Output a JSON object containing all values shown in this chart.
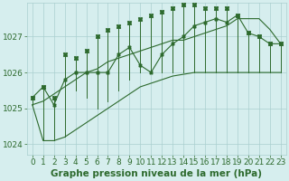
{
  "xlabel": "Graphe pression niveau de la mer (hPa)",
  "hours": [
    0,
    1,
    2,
    3,
    4,
    5,
    6,
    7,
    8,
    9,
    10,
    11,
    12,
    13,
    14,
    15,
    16,
    17,
    18,
    19,
    20,
    21,
    22,
    23
  ],
  "values_main": [
    1025.3,
    1025.6,
    1025.1,
    1025.8,
    1026.0,
    1026.0,
    1026.0,
    1026.0,
    1026.5,
    1026.7,
    1026.2,
    1026.0,
    1026.5,
    1026.8,
    1027.0,
    1027.3,
    1027.4,
    1027.5,
    1027.4,
    1027.6,
    1027.1,
    1027.0,
    1026.8,
    1026.8
  ],
  "values_high": [
    1025.3,
    1025.6,
    1025.3,
    1026.5,
    1026.4,
    1026.6,
    1027.0,
    1027.2,
    1027.3,
    1027.4,
    1027.5,
    1027.6,
    1027.7,
    1027.8,
    1027.9,
    1027.9,
    1027.8,
    1027.8,
    1027.8,
    1027.6,
    1027.1,
    1027.0,
    1026.8,
    1026.8
  ],
  "values_low": [
    1025.1,
    1024.1,
    1024.1,
    1024.2,
    1025.5,
    1025.3,
    1025.0,
    1025.2,
    1025.5,
    1025.8,
    1026.0,
    1026.0,
    1026.0,
    1026.0,
    1026.0,
    1026.0,
    1026.0,
    1026.0,
    1026.0,
    1026.0,
    1026.0,
    1026.0,
    1026.0,
    1026.0
  ],
  "trend_high": [
    1025.1,
    1025.2,
    1025.4,
    1025.6,
    1025.8,
    1026.0,
    1026.1,
    1026.3,
    1026.4,
    1026.5,
    1026.6,
    1026.7,
    1026.8,
    1026.9,
    1026.9,
    1027.0,
    1027.1,
    1027.2,
    1027.3,
    1027.5,
    1027.5,
    1027.5,
    1027.2,
    1026.8
  ],
  "trend_low": [
    1025.1,
    1024.1,
    1024.1,
    1024.2,
    1024.4,
    1024.6,
    1024.8,
    1025.0,
    1025.2,
    1025.4,
    1025.6,
    1025.7,
    1025.8,
    1025.9,
    1025.95,
    1026.0,
    1026.0,
    1026.0,
    1026.0,
    1026.0,
    1026.0,
    1026.0,
    1026.0,
    1026.0
  ],
  "ylim": [
    1023.7,
    1027.95
  ],
  "yticks": [
    1024,
    1025,
    1026,
    1027
  ],
  "bg_color": "#d6eeee",
  "line_color": "#2d6a2d",
  "grid_color": "#aacfcf",
  "label_color": "#2d6a2d",
  "xlabel_fontsize": 7.5,
  "tick_fontsize": 6.5
}
